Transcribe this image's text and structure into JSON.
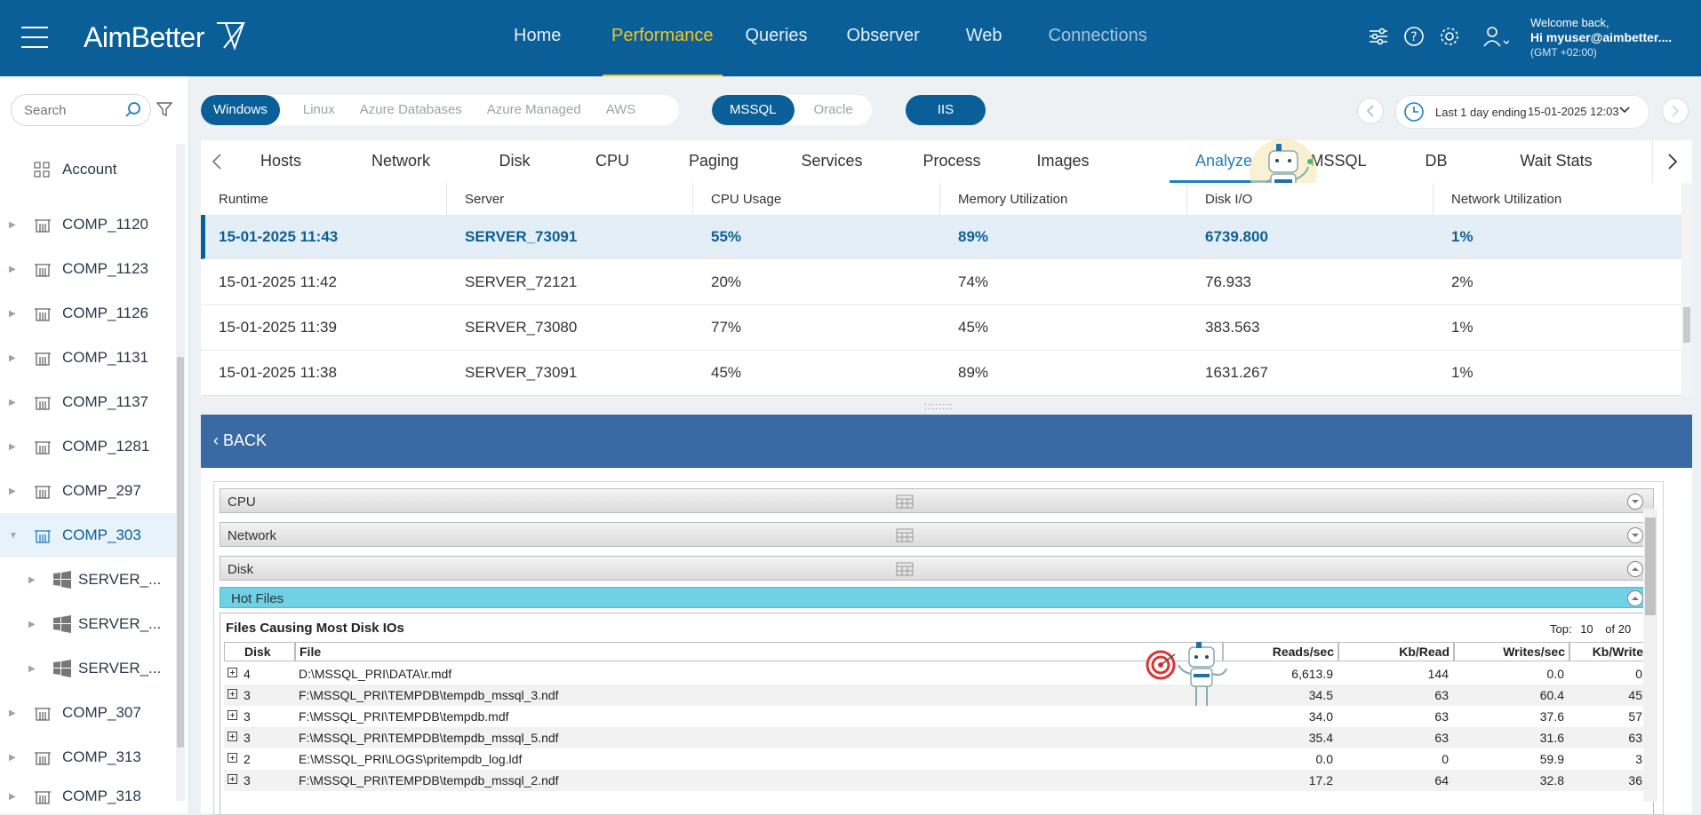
{
  "brand": "AimBetter",
  "nav": [
    "Home",
    "Performance",
    "Queries",
    "Observer",
    "Web",
    "Connections"
  ],
  "user": {
    "welcome": "Welcome back,",
    "name": "Hi myuser@aimbetter....",
    "tz": "(GMT +02:00)"
  },
  "sidebar": {
    "search_placeholder": "Search",
    "items": [
      {
        "label": "Account"
      },
      {
        "label": "COMP_1120"
      },
      {
        "label": "COMP_1123"
      },
      {
        "label": "COMP_1126"
      },
      {
        "label": "COMP_1131"
      },
      {
        "label": "COMP_1137"
      },
      {
        "label": "COMP_1281"
      },
      {
        "label": "COMP_297"
      },
      {
        "label": "COMP_303"
      },
      {
        "label": "SERVER_..."
      },
      {
        "label": "SERVER_..."
      },
      {
        "label": "SERVER_..."
      },
      {
        "label": "COMP_307"
      },
      {
        "label": "COMP_313"
      },
      {
        "label": "COMP_318"
      }
    ]
  },
  "os_toggle": [
    "Windows",
    "Linux",
    "Azure Databases",
    "Azure Managed",
    "AWS"
  ],
  "db_toggle": [
    "MSSQL",
    "Oracle"
  ],
  "iis_label": "IIS",
  "time_range": {
    "label": "Last 1 day ending",
    "value": "15-01-2025 12:03"
  },
  "tabs": [
    "Hosts",
    "Network",
    "Disk",
    "CPU",
    "Paging",
    "Services",
    "Process",
    "Images",
    "Analyze",
    "MSSQL",
    "DB",
    "Wait Stats"
  ],
  "grid": {
    "columns": [
      "Runtime",
      "Server",
      "CPU Usage",
      "Memory Utilization",
      "Disk I/O",
      "Network Utilization"
    ],
    "rows": [
      [
        "15-01-2025 11:43",
        "SERVER_73091",
        "55%",
        "89%",
        "6739.800",
        "1%"
      ],
      [
        "15-01-2025 11:42",
        "SERVER_72121",
        "20%",
        "74%",
        "76.933",
        "2%"
      ],
      [
        "15-01-2025 11:39",
        "SERVER_73080",
        "77%",
        "45%",
        "383.563",
        "1%"
      ],
      [
        "15-01-2025 11:38",
        "SERVER_73091",
        "45%",
        "89%",
        "1631.267",
        "1%"
      ]
    ]
  },
  "back_label": "BACK",
  "sections": [
    "CPU",
    "Network",
    "Disk",
    "Hot Files"
  ],
  "hot_files": {
    "title": "Files Causing Most Disk IOs",
    "top_label": "Top:",
    "top_value": "10",
    "of_label": "of 20",
    "columns": [
      "Disk",
      "File",
      "Reads/sec",
      "Kb/Read",
      "Writes/sec",
      "Kb/Write"
    ],
    "rows": [
      [
        "4",
        "D:\\MSSQL_PRI\\DATA\\r.mdf",
        "6,613.9",
        "144",
        "0.0",
        "0"
      ],
      [
        "3",
        "F:\\MSSQL_PRI\\TEMPDB\\tempdb_mssql_3.ndf",
        "34.5",
        "63",
        "60.4",
        "45"
      ],
      [
        "3",
        "F:\\MSSQL_PRI\\TEMPDB\\tempdb.mdf",
        "34.0",
        "63",
        "37.6",
        "57"
      ],
      [
        "3",
        "F:\\MSSQL_PRI\\TEMPDB\\tempdb_mssql_5.ndf",
        "35.4",
        "63",
        "31.6",
        "63"
      ],
      [
        "2",
        "E:\\MSSQL_PRI\\LOGS\\pritempdb_log.ldf",
        "0.0",
        "0",
        "59.9",
        "3"
      ],
      [
        "3",
        "F:\\MSSQL_PRI\\TEMPDB\\tempdb_mssql_2.ndf",
        "17.2",
        "64",
        "32.8",
        "36"
      ]
    ]
  }
}
